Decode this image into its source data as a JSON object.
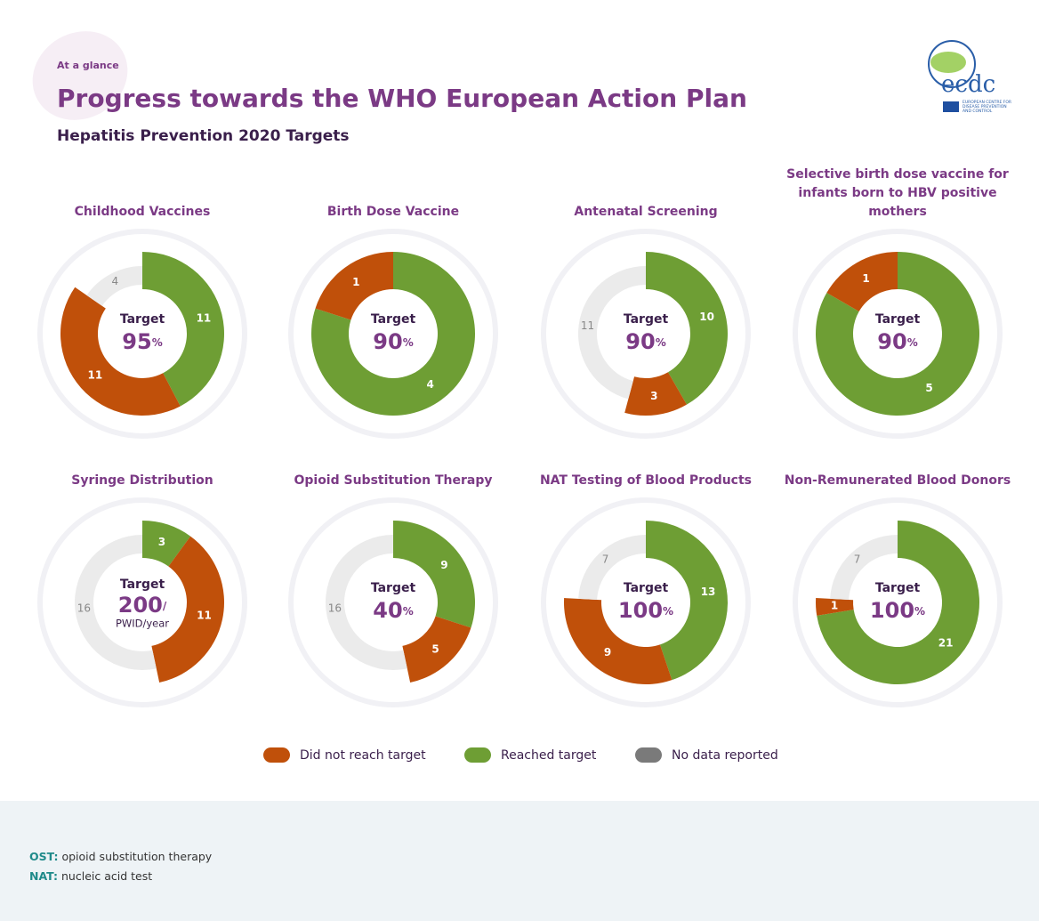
{
  "header": {
    "tag": "At a glance",
    "title": "Progress towards the WHO European Action Plan",
    "subtitle": "Hepatitis Prevention 2020 Targets"
  },
  "logo": {
    "text": "ecdc",
    "caption": "EUROPEAN CENTRE FOR DISEASE PREVENTION AND CONTROL"
  },
  "legend": [
    {
      "name": "Did not reach target",
      "color": "#c0500a"
    },
    {
      "name": "Reached target",
      "color": "#6e9e34"
    },
    {
      "name": "No data reported",
      "color": "#7a7a7a"
    }
  ],
  "ring_color_no_data": "#ebebeb",
  "chart_data": [
    {
      "type": "donut",
      "title": "Childhood Vaccines",
      "target_label": "Target",
      "target": 95,
      "target_unit": "%",
      "values": [
        11,
        11,
        4
      ]
    },
    {
      "type": "donut",
      "title": "Birth Dose Vaccine",
      "target_label": "Target",
      "target": 90,
      "target_unit": "%",
      "values": [
        1,
        4,
        0
      ]
    },
    {
      "type": "donut",
      "title": "Antenatal Screening",
      "target_label": "Target",
      "target": 90,
      "target_unit": "%",
      "values": [
        3,
        10,
        11
      ]
    },
    {
      "type": "donut",
      "title": "Selective birth dose vaccine for infants born to HBV positive mothers",
      "target_label": "Target",
      "target": 90,
      "target_unit": "%",
      "values": [
        1,
        5,
        0
      ]
    },
    {
      "type": "donut",
      "title": "Syringe Distribution",
      "target_label": "Target",
      "target": 200,
      "target_unit": "/",
      "target_note": "PWID/year",
      "values": [
        11,
        3,
        16
      ]
    },
    {
      "type": "donut",
      "title": "Opioid Substitution Therapy",
      "target_label": "Target",
      "target": 40,
      "target_unit": "%",
      "values": [
        5,
        9,
        16
      ]
    },
    {
      "type": "donut",
      "title": "NAT Testing of Blood Products",
      "target_label": "Target",
      "target": 100,
      "target_unit": "%",
      "values": [
        9,
        13,
        7
      ]
    },
    {
      "type": "donut",
      "title": "Non-Remunerated Blood Donors",
      "target_label": "Target",
      "target": 100,
      "target_unit": "%",
      "values": [
        1,
        21,
        7
      ]
    }
  ],
  "notes": [
    {
      "term": "OST:",
      "text": "opioid substitution therapy"
    },
    {
      "term": "NAT:",
      "text": "nucleic acid test"
    }
  ]
}
